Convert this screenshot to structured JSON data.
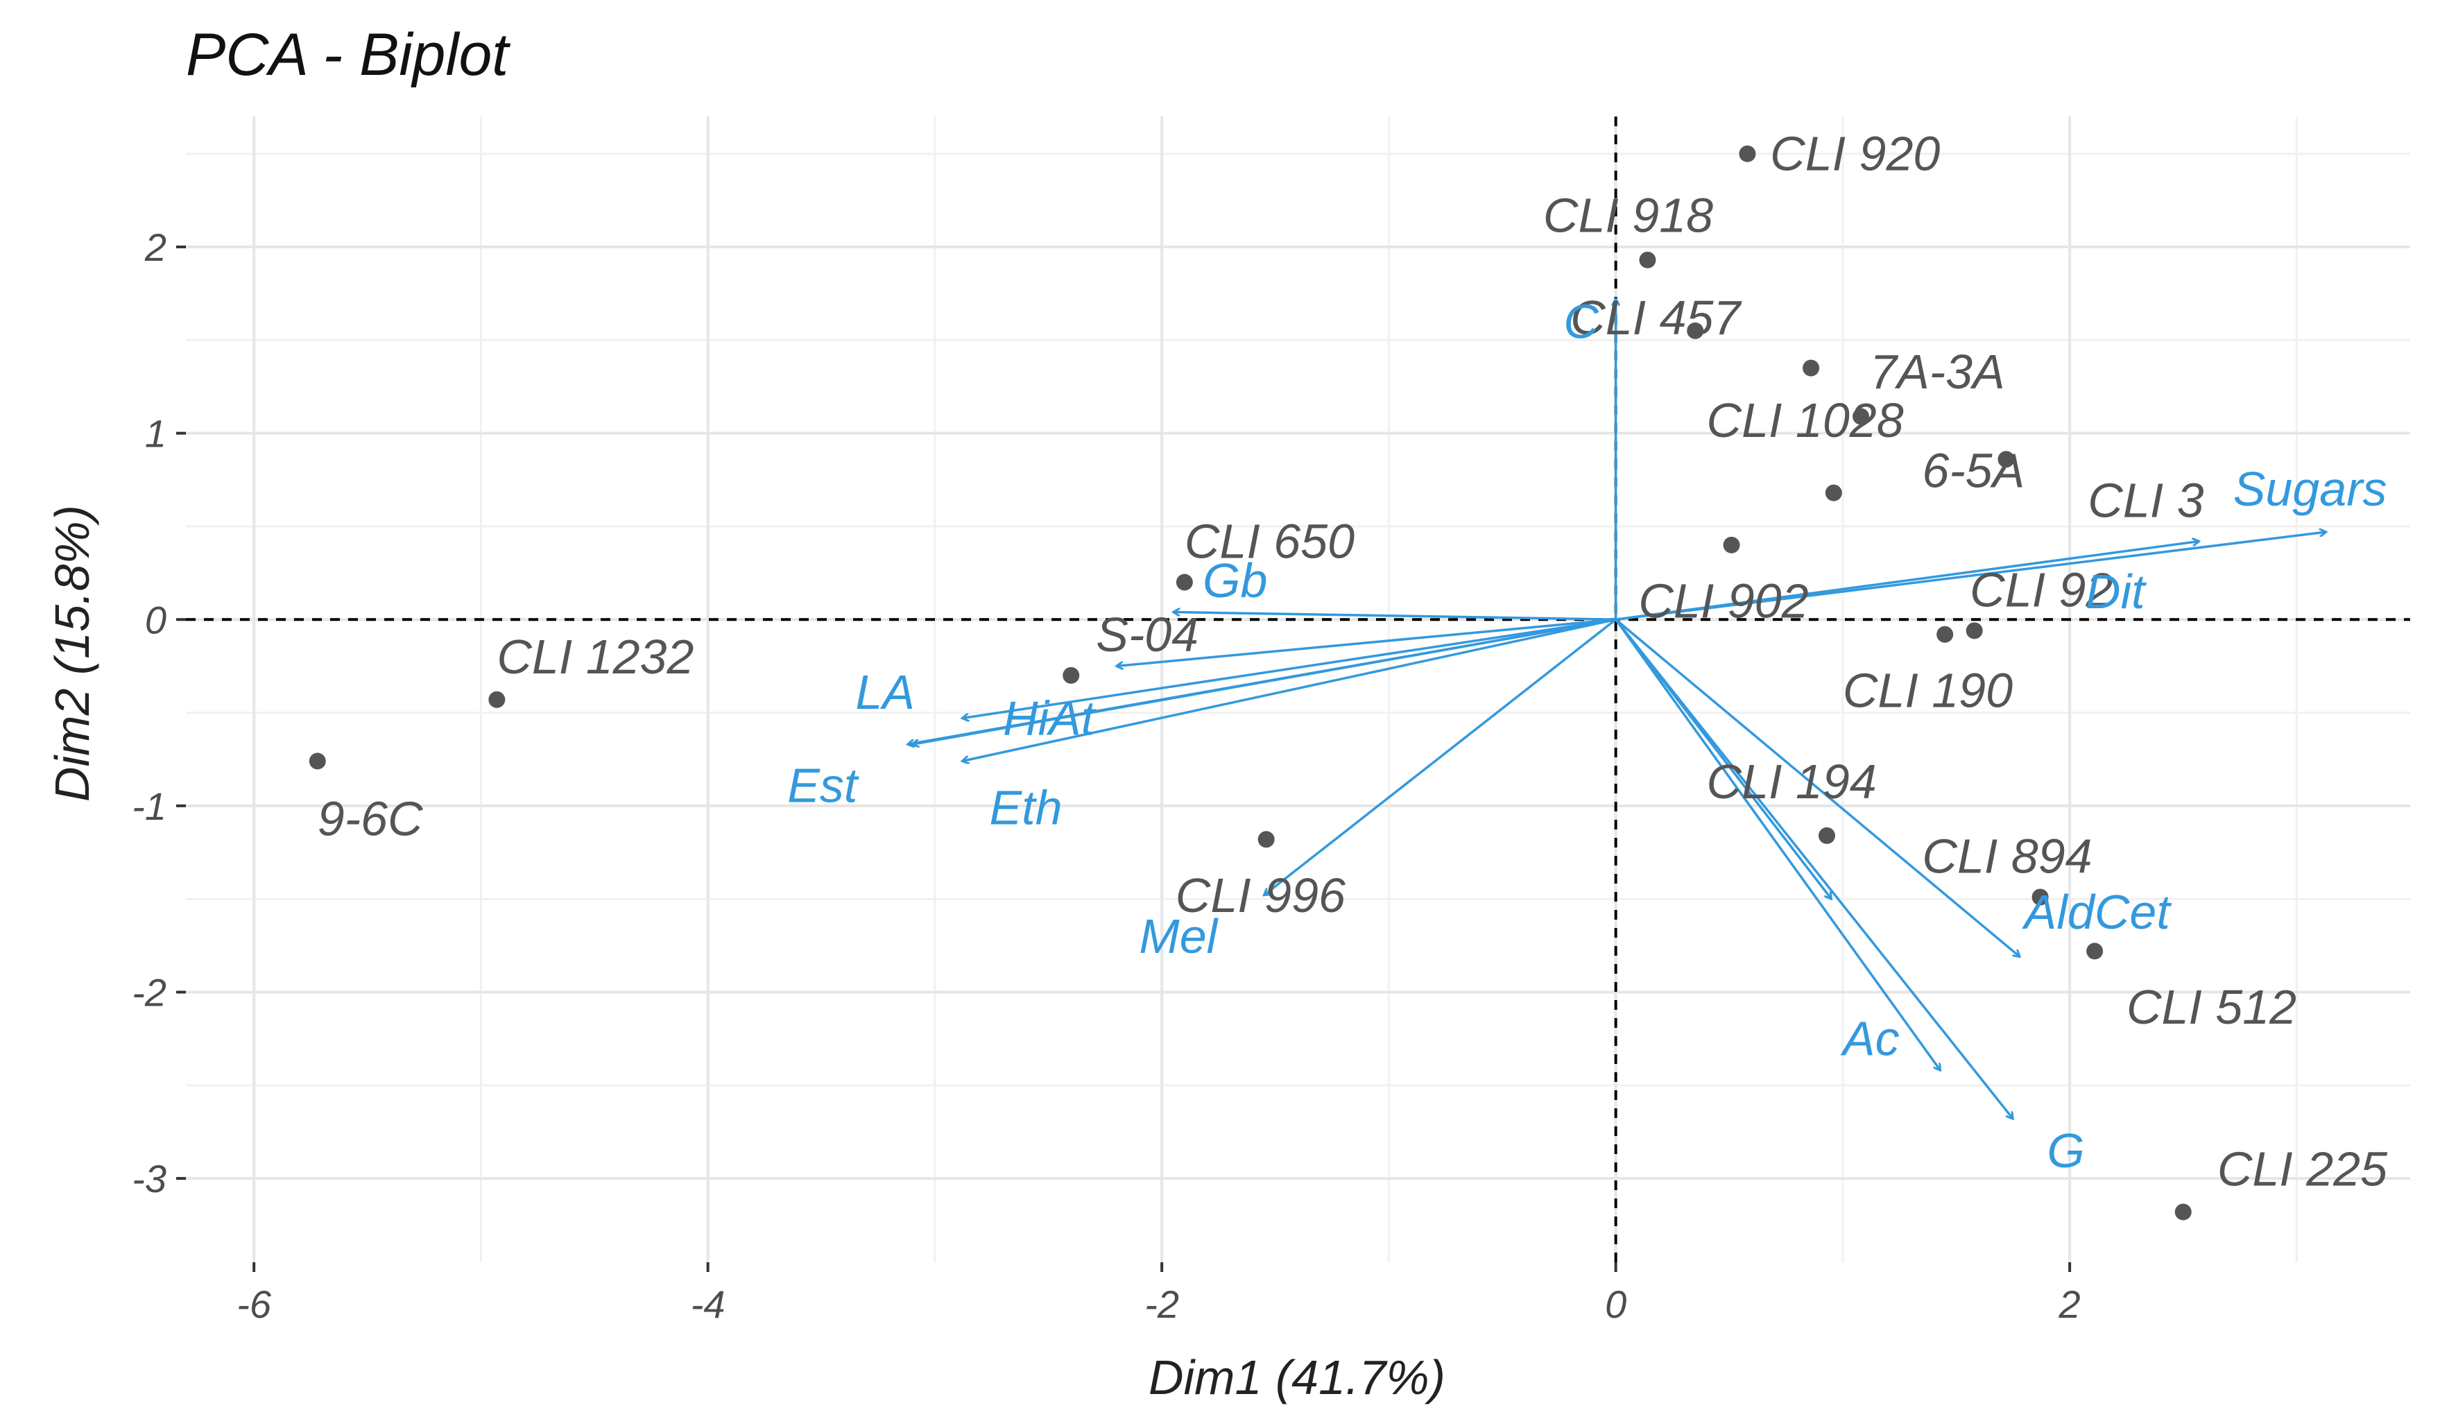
{
  "chart_data": {
    "type": "scatter",
    "subtype": "pca-biplot",
    "title": "PCA - Biplot",
    "xlabel": "Dim1 (41.7%)",
    "ylabel": "Dim2 (15.8%)",
    "xlim": [
      -6.3,
      3.5
    ],
    "ylim": [
      -3.45,
      2.7
    ],
    "xticks": [
      -6,
      -4,
      -2,
      0,
      2
    ],
    "yticks": [
      -3,
      -2,
      -1,
      0,
      1,
      2
    ],
    "tick_labels_x": [
      "-6",
      "-4",
      "-2",
      "0",
      "2"
    ],
    "tick_labels_y": [
      "-3",
      "-2",
      "-1",
      "0",
      "1",
      "2"
    ],
    "grid": true,
    "zero_lines": "dashed",
    "colors": {
      "individuals": "#555555",
      "variables": "#3399dd",
      "grid": "#e6e6e6"
    },
    "individuals": [
      {
        "label": "CLI 920",
        "x": 0.58,
        "y": 2.5,
        "lx": 0.68,
        "ly": 2.5
      },
      {
        "label": "CLI 918",
        "x": 0.14,
        "y": 1.93,
        "lx": -0.32,
        "ly": 2.17
      },
      {
        "label": "CLI 457",
        "x": 0.35,
        "y": 1.55,
        "lx": -0.2,
        "ly": 1.62
      },
      {
        "label": "7A-3A",
        "x": 0.86,
        "y": 1.35,
        "lx": 1.12,
        "ly": 1.33
      },
      {
        "label": "CLI 1028",
        "x": 1.08,
        "y": 1.09,
        "lx": 0.4,
        "ly": 1.07
      },
      {
        "label": "6-5A",
        "x": 1.72,
        "y": 0.86,
        "lx": 1.35,
        "ly": 0.8
      },
      {
        "label": "CLI 3",
        "x": 0.96,
        "y": 0.68,
        "lx": 2.08,
        "ly": 0.64
      },
      {
        "label": "CLI 902",
        "x": 0.51,
        "y": 0.4,
        "lx": 0.1,
        "ly": 0.1
      },
      {
        "label": "CLI 92",
        "x": 1.58,
        "y": -0.06,
        "lx": 1.56,
        "ly": 0.16
      },
      {
        "label": "CLI 190",
        "x": 1.45,
        "y": -0.08,
        "lx": 1.0,
        "ly": -0.38
      },
      {
        "label": "CLI 194",
        "x": 0.0,
        "y": 0.0,
        "lx": 0.4,
        "ly": -0.87,
        "hide_point": true
      },
      {
        "label": "CLI 894",
        "x": 0.93,
        "y": -1.16,
        "lx": 1.35,
        "ly": -1.27
      },
      {
        "label": "CLI 512",
        "x": 2.11,
        "y": -1.78,
        "lx": 2.25,
        "ly": -2.08
      },
      {
        "label": "CLI 225",
        "x": 2.5,
        "y": -3.18,
        "lx": 2.65,
        "ly": -2.95
      },
      {
        "label": "CLI 650",
        "x": -1.9,
        "y": 0.2,
        "lx": -1.9,
        "ly": 0.42
      },
      {
        "label": "S-04",
        "x": -2.4,
        "y": -0.3,
        "lx": -2.29,
        "ly": -0.08
      },
      {
        "label": "CLI 1232",
        "x": -4.93,
        "y": -0.43,
        "lx": -4.93,
        "ly": -0.2
      },
      {
        "label": "9-6C",
        "x": -5.72,
        "y": -0.76,
        "lx": -5.72,
        "ly": -1.07
      },
      {
        "label": "CLI 996",
        "x": -1.54,
        "y": -1.18,
        "lx": -1.94,
        "ly": -1.48
      },
      {
        "label": "",
        "x": 1.87,
        "y": -1.49
      }
    ],
    "variables": [
      {
        "label": "Sugars",
        "x": 3.13,
        "y": 0.47,
        "lx": 2.72,
        "ly": 0.7
      },
      {
        "label": "Dit",
        "x": 2.57,
        "y": 0.42,
        "lx": 2.07,
        "ly": 0.15
      },
      {
        "label": "C",
        "x": 0.0,
        "y": 1.72,
        "lx": -0.23,
        "ly": 1.6
      },
      {
        "label": "Gb",
        "x": -1.95,
        "y": 0.04,
        "lx": -1.82,
        "ly": 0.21
      },
      {
        "label": "LA",
        "x": -3.12,
        "y": -0.67,
        "lx": -3.35,
        "ly": -0.39
      },
      {
        "label": "HiAt",
        "x": -2.88,
        "y": -0.53,
        "lx": -2.7,
        "ly": -0.53
      },
      {
        "label": "Est",
        "x": -3.1,
        "y": -0.67,
        "lx": -3.65,
        "ly": -0.89
      },
      {
        "label": "Eth",
        "x": -2.88,
        "y": -0.76,
        "lx": -2.76,
        "ly": -1.01
      },
      {
        "label": "",
        "x": -2.2,
        "y": -0.25
      },
      {
        "label": "Mel",
        "x": -1.55,
        "y": -1.48,
        "lx": -2.1,
        "ly": -1.7
      },
      {
        "label": "AldCet",
        "x": 1.78,
        "y": -1.81,
        "lx": 1.8,
        "ly": -1.57
      },
      {
        "label": "Ac",
        "x": 1.43,
        "y": -2.42,
        "lx": 1.0,
        "ly": -2.25
      },
      {
        "label": "G",
        "x": 1.75,
        "y": -2.68,
        "lx": 1.9,
        "ly": -2.85
      },
      {
        "label": "",
        "x": 0.95,
        "y": -1.5
      }
    ]
  }
}
